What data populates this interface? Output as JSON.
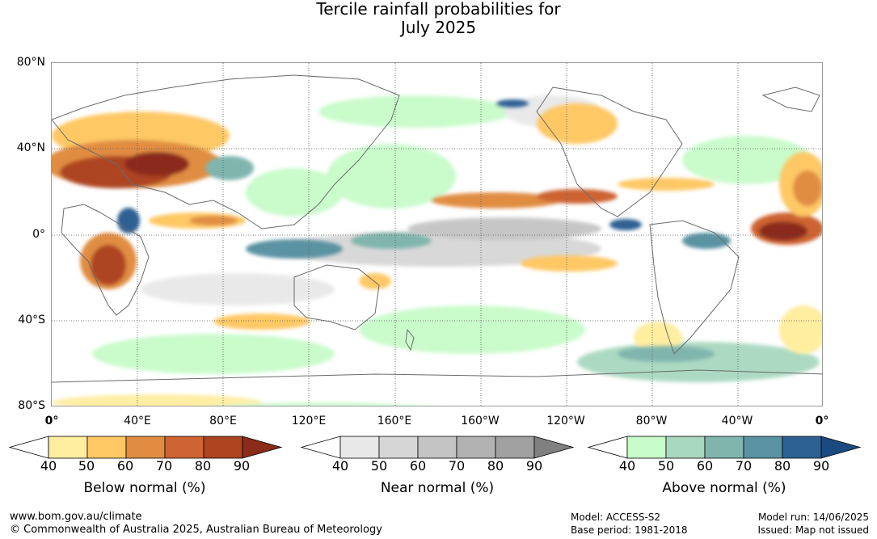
{
  "title_line1": "Tercile rainfall probabilities for",
  "title_line2": "July 2025",
  "lat_labels": [
    "80°N",
    "40°N",
    "0°",
    "40°S",
    "80°S"
  ],
  "lon_labels": [
    "0°",
    "40°E",
    "80°E",
    "120°E",
    "160°E",
    "160°W",
    "120°W",
    "80°W",
    "40°W",
    "0°"
  ],
  "legends": [
    {
      "title": "Below normal (%)",
      "ticks": [
        "40",
        "50",
        "60",
        "70",
        "80",
        "90"
      ],
      "colors": [
        "#ffeda0",
        "#fec865",
        "#e08d42",
        "#cd6431",
        "#ae4420",
        "#8b2b1a"
      ]
    },
    {
      "title": "Near normal (%)",
      "ticks": [
        "40",
        "50",
        "60",
        "70",
        "80",
        "90"
      ],
      "colors": [
        "#e8e8e8",
        "#d6d6d6",
        "#c4c4c4",
        "#b2b2b2",
        "#a0a0a0",
        "#808080"
      ]
    },
    {
      "title": "Above normal (%)",
      "ticks": [
        "40",
        "50",
        "60",
        "70",
        "80",
        "90"
      ],
      "colors": [
        "#c7fbc9",
        "#a8d8bf",
        "#80b5ae",
        "#5b93a2",
        "#2e6193",
        "#1b4a80"
      ]
    }
  ],
  "footer": {
    "url": "www.bom.gov.au/climate",
    "copyright": "© Commonwealth of Australia 2025, Australian Bureau of Meteorology",
    "model": "Model: ACCESS-S2",
    "base_period": "Base period: 1981-2018",
    "model_run": "Model run: 14/06/2025",
    "issued": "Issued: Map not issued"
  }
}
